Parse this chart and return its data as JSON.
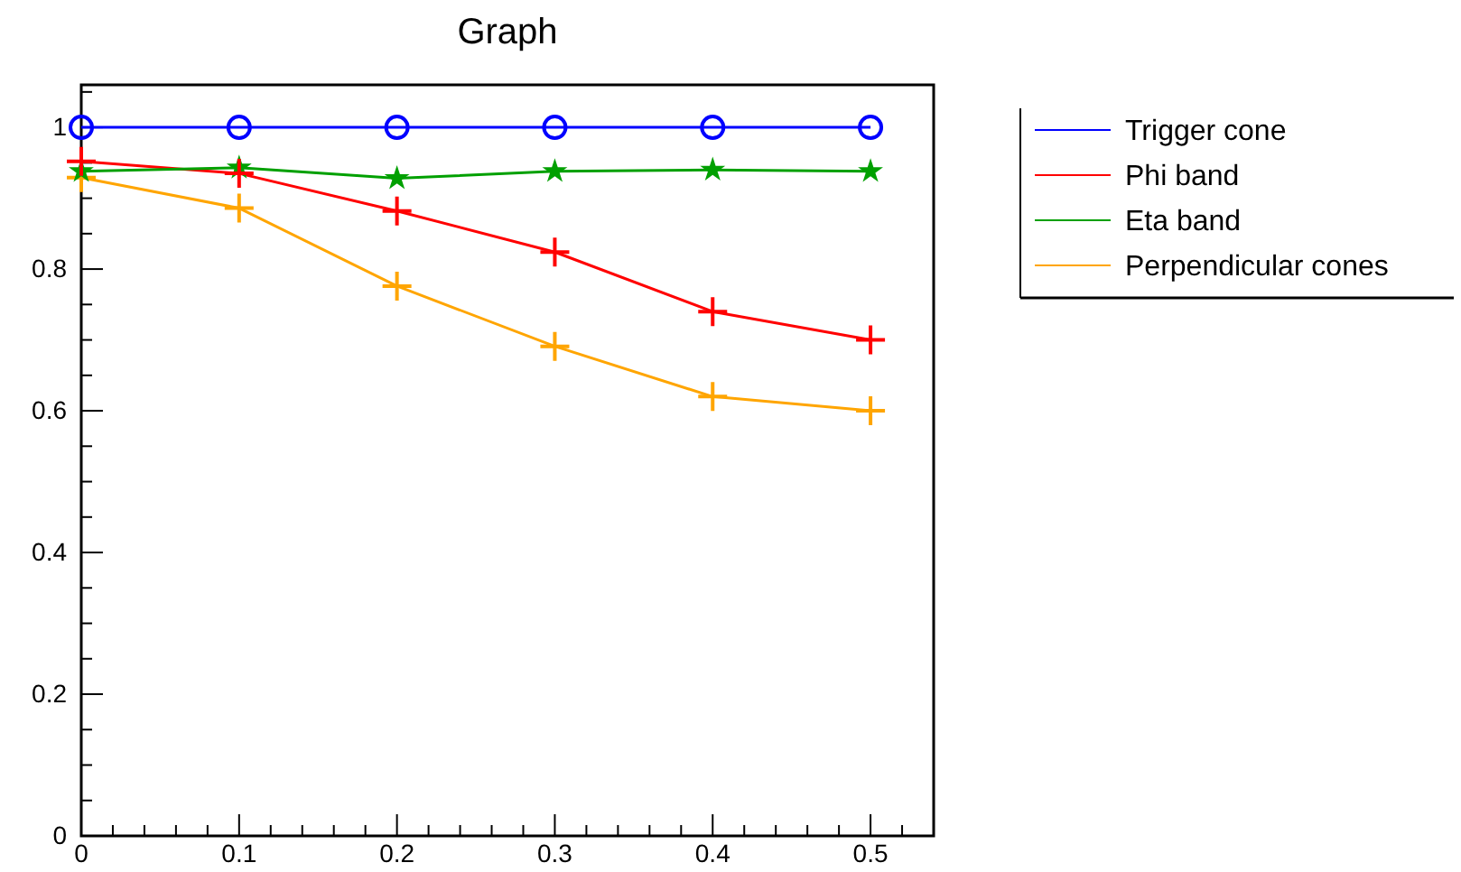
{
  "chart_data": {
    "type": "line",
    "title": "Graph",
    "x": [
      0,
      0.1,
      0.2,
      0.3,
      0.4,
      0.5
    ],
    "xlim": [
      0,
      0.54
    ],
    "ylim": [
      0,
      1.06
    ],
    "xticks": [
      0,
      {
        "value": 0.02,
        "label": null
      },
      {
        "value": 0.04,
        "label": null
      },
      {
        "value": 0.06,
        "label": null
      },
      {
        "value": 0.08,
        "label": null
      },
      0.1,
      {
        "value": 0.12,
        "label": null
      },
      {
        "value": 0.14,
        "label": null
      },
      {
        "value": 0.16,
        "label": null
      },
      {
        "value": 0.18,
        "label": null
      },
      0.2,
      {
        "value": 0.22,
        "label": null
      },
      {
        "value": 0.24,
        "label": null
      },
      {
        "value": 0.26,
        "label": null
      },
      {
        "value": 0.28,
        "label": null
      },
      0.3,
      {
        "value": 0.32,
        "label": null
      },
      {
        "value": 0.34,
        "label": null
      },
      {
        "value": 0.36,
        "label": null
      },
      {
        "value": 0.38,
        "label": null
      },
      0.4,
      {
        "value": 0.42,
        "label": null
      },
      {
        "value": 0.44,
        "label": null
      },
      {
        "value": 0.46,
        "label": null
      },
      {
        "value": 0.48,
        "label": null
      },
      0.5,
      {
        "value": 0.52,
        "label": null
      }
    ],
    "yticks": [
      0,
      {
        "value": 0.05,
        "label": null
      },
      {
        "value": 0.1,
        "label": null
      },
      {
        "value": 0.15,
        "label": null
      },
      0.2,
      {
        "value": 0.25,
        "label": null
      },
      {
        "value": 0.3,
        "label": null
      },
      {
        "value": 0.35,
        "label": null
      },
      0.4,
      {
        "value": 0.45,
        "label": null
      },
      {
        "value": 0.5,
        "label": null
      },
      {
        "value": 0.55,
        "label": null
      },
      0.6,
      {
        "value": 0.65,
        "label": null
      },
      {
        "value": 0.7,
        "label": null
      },
      {
        "value": 0.75,
        "label": null
      },
      0.8,
      {
        "value": 0.85,
        "label": null
      },
      {
        "value": 0.9,
        "label": null
      },
      {
        "value": 0.95,
        "label": null
      },
      1,
      {
        "value": 1.05,
        "label": null
      }
    ],
    "legend": "top right",
    "grid": false,
    "series": [
      {
        "name": "Trigger cone",
        "color": "#0000ff",
        "marker": "circle",
        "values": [
          1,
          1,
          1,
          1,
          1,
          1
        ]
      },
      {
        "name": "Phi band",
        "color": "#ff0000",
        "marker": "cross",
        "values": [
          0.952,
          0.935,
          0.882,
          0.824,
          0.74,
          0.7
        ]
      },
      {
        "name": "Eta band",
        "color": "#00a000",
        "marker": "star",
        "values": [
          0.938,
          0.943,
          0.928,
          0.938,
          0.94,
          0.938
        ]
      },
      {
        "name": "Perpendicular cones",
        "color": "#ffa500",
        "marker": "cross",
        "values": [
          0.929,
          0.886,
          0.776,
          0.691,
          0.62,
          0.6
        ]
      }
    ]
  }
}
